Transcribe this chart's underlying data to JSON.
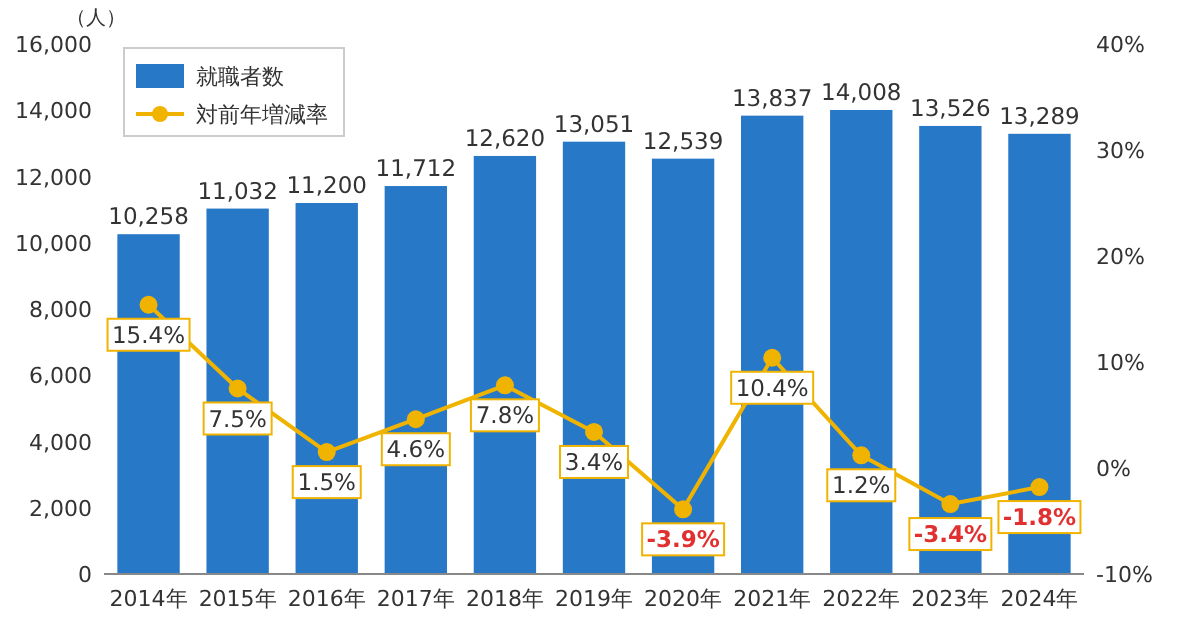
{
  "chart_data": {
    "type": "bar",
    "ylabel": "（人）",
    "categories": [
      "2014年",
      "2015年",
      "2016年",
      "2017年",
      "2018年",
      "2019年",
      "2020年",
      "2021年",
      "2022年",
      "2023年",
      "2024年"
    ],
    "series": [
      {
        "name": "就職者数",
        "color": "#2878c8",
        "values": [
          10258,
          11032,
          11200,
          11712,
          12620,
          13051,
          12539,
          13837,
          14008,
          13526,
          13289
        ],
        "value_labels": [
          "10,258",
          "11,032",
          "11,200",
          "11,712",
          "12,620",
          "13,051",
          "12,539",
          "13,837",
          "14,008",
          "13,526",
          "13,289"
        ]
      },
      {
        "name": "対前年増減率",
        "type": "line",
        "axis": "y2",
        "color": "#f0b400",
        "values": [
          15.4,
          7.5,
          1.5,
          4.6,
          7.8,
          3.4,
          -3.9,
          10.4,
          1.2,
          -3.4,
          -1.8
        ],
        "value_labels": [
          "15.4%",
          "7.5%",
          "1.5%",
          "4.6%",
          "7.8%",
          "3.4%",
          "-3.9%",
          "10.4%",
          "1.2%",
          "-3.4%",
          "-1.8%"
        ]
      }
    ],
    "ylim": [
      0,
      16000
    ],
    "yticks": [
      {
        "value": 0,
        "label": "0"
      },
      {
        "value": 2000,
        "label": "2,000"
      },
      {
        "value": 4000,
        "label": "4,000"
      },
      {
        "value": 6000,
        "label": "6,000"
      },
      {
        "value": 8000,
        "label": "8,000"
      },
      {
        "value": 10000,
        "label": "10,000"
      },
      {
        "value": 12000,
        "label": "12,000"
      },
      {
        "value": 14000,
        "label": "14,000"
      },
      {
        "value": 16000,
        "label": "16,000"
      }
    ],
    "y2lim": [
      -10,
      40
    ],
    "y2ticks": [
      {
        "value": -10,
        "label": "-10%"
      },
      {
        "value": 0,
        "label": "0%"
      },
      {
        "value": 10,
        "label": "10%"
      },
      {
        "value": 20,
        "label": "20%"
      },
      {
        "value": 30,
        "label": "30%"
      },
      {
        "value": 40,
        "label": "40%"
      }
    ],
    "legend": "top left",
    "marker": "circle",
    "grid": false
  }
}
